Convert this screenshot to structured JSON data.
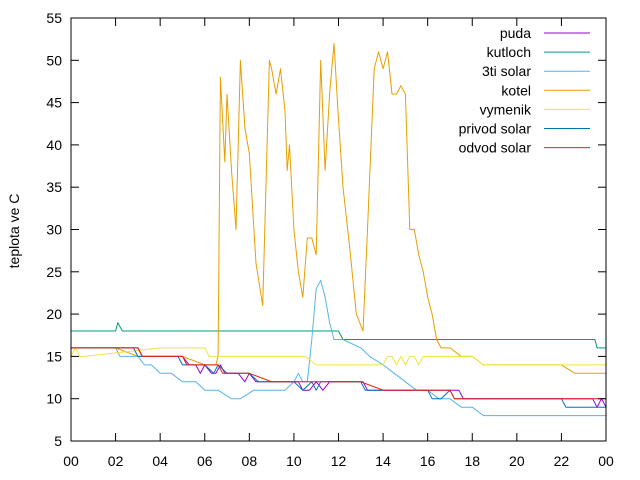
{
  "chart_data": {
    "type": "line",
    "title": "",
    "xlabel": "",
    "ylabel": "teplota ve C",
    "xlim": [
      0,
      24
    ],
    "ylim": [
      5,
      55
    ],
    "x_ticks": [
      "00",
      "02",
      "04",
      "06",
      "08",
      "10",
      "12",
      "14",
      "16",
      "18",
      "20",
      "22",
      "00"
    ],
    "y_ticks": [
      5,
      10,
      15,
      20,
      25,
      30,
      35,
      40,
      45,
      50,
      55
    ],
    "grid": false,
    "legend": "top-right",
    "series": [
      {
        "name": "puda",
        "color": "#9400d3",
        "x": [
          0,
          3,
          3.2,
          3.4,
          5,
          5.3,
          5.6,
          5.8,
          6.0,
          6.3,
          6.5,
          6.7,
          6.9,
          7.1,
          7.5,
          7.8,
          8.0,
          8.3,
          8.7,
          10.2,
          10.4,
          10.7,
          11.0,
          11.3,
          11.6,
          12.0,
          13.1,
          13.3,
          13.6,
          17.4,
          17.6,
          18.0,
          23.4,
          23.6,
          23.8,
          24
        ],
        "y": [
          16,
          16,
          15,
          15,
          15,
          14,
          14,
          13,
          14,
          13,
          13,
          14,
          13,
          13,
          13,
          12,
          13,
          12,
          12,
          12,
          11,
          11,
          12,
          11,
          12,
          12,
          12,
          11,
          11,
          11,
          10,
          10,
          10,
          9,
          10,
          9
        ]
      },
      {
        "name": "kutloch",
        "color": "#009e73",
        "x": [
          0,
          2.0,
          2.1,
          2.3,
          12.0,
          12.2,
          23.5,
          23.6,
          24
        ],
        "y": [
          18,
          18,
          19,
          18,
          18,
          17,
          17,
          16,
          16
        ]
      },
      {
        "name": "3ti solar",
        "color": "#56b4e9",
        "x": [
          0,
          2.0,
          2.2,
          3.0,
          3.3,
          3.6,
          4.0,
          4.5,
          5.0,
          5.6,
          6.0,
          6.3,
          6.6,
          7.2,
          7.6,
          8.2,
          9.0,
          9.6,
          10.0,
          10.2,
          10.4,
          10.6,
          10.8,
          11.0,
          11.2,
          11.4,
          11.6,
          11.8,
          12.2,
          13.0,
          13.4,
          14.0,
          14.5,
          15.0,
          15.5,
          16.0,
          16.5,
          17.0,
          17.5,
          18.0,
          18.5,
          20.0,
          22.0,
          24
        ],
        "y": [
          16,
          16,
          15,
          15,
          14,
          14,
          13,
          13,
          12,
          12,
          11,
          11,
          11,
          10,
          10,
          11,
          11,
          11,
          12,
          13,
          12,
          12,
          17,
          23,
          24,
          22,
          19,
          17,
          17,
          16,
          15,
          14,
          13,
          12,
          11,
          11,
          10,
          10,
          9,
          9,
          8,
          8,
          8,
          8
        ]
      },
      {
        "name": "kotel",
        "color": "#e69f00",
        "x": [
          0,
          1,
          2,
          3,
          4,
          5,
          6,
          6.5,
          6.6,
          6.7,
          6.9,
          7.0,
          7.2,
          7.4,
          7.6,
          7.8,
          8.0,
          8.3,
          8.6,
          8.9,
          9.0,
          9.2,
          9.4,
          9.6,
          9.7,
          9.8,
          10.0,
          10.2,
          10.4,
          10.6,
          10.8,
          11.0,
          11.2,
          11.4,
          11.6,
          11.8,
          12.0,
          12.2,
          12.5,
          12.8,
          13.1,
          13.3,
          13.6,
          13.8,
          14.0,
          14.2,
          14.4,
          14.6,
          14.8,
          15.0,
          15.2,
          15.4,
          15.6,
          15.8,
          16.0,
          16.2,
          16.4,
          16.6,
          17.0,
          17.5,
          18.0,
          18.5,
          19,
          20,
          21,
          22,
          22.6,
          23,
          24
        ],
        "y": [
          16,
          16,
          16,
          15,
          15,
          15,
          14,
          14,
          15,
          48,
          38,
          46,
          37,
          30,
          50,
          42,
          39,
          26,
          21,
          50,
          49,
          46,
          49,
          44,
          37,
          40,
          30,
          25,
          22,
          29,
          29,
          27,
          50,
          37,
          46,
          52,
          43,
          35,
          28,
          20,
          18,
          30,
          49,
          51,
          49,
          51,
          46,
          46,
          47,
          46,
          30,
          30,
          27,
          25,
          22,
          20,
          17,
          16,
          16,
          15,
          15,
          14,
          14,
          14,
          14,
          14,
          13,
          13,
          13
        ]
      },
      {
        "name": "vymenik",
        "color": "#f0e442",
        "x": [
          0,
          0.2,
          0.4,
          0.6,
          4.0,
          6.0,
          6.2,
          10.5,
          11.0,
          12.0,
          14.0,
          14.2,
          14.4,
          14.6,
          14.8,
          15.0,
          15.2,
          15.4,
          15.6,
          15.8,
          16.0,
          17.0,
          18.0,
          18.5,
          19.0,
          20.0,
          22.0,
          24
        ],
        "y": [
          15,
          16,
          15,
          15,
          16,
          16,
          15,
          15,
          14,
          14,
          14,
          15,
          15,
          14,
          15,
          14,
          15,
          15,
          14,
          15,
          15,
          15,
          15,
          14,
          14,
          14,
          14,
          14
        ]
      },
      {
        "name": "privod solar",
        "color": "#0072b2",
        "x": [
          0,
          2.8,
          3.0,
          4.0,
          4.8,
          5.0,
          5.6,
          6.0,
          6.4,
          6.6,
          7.0,
          8.0,
          8.4,
          9.0,
          10.0,
          10.4,
          10.8,
          11.0,
          11.2,
          12.0,
          13.0,
          13.2,
          13.6,
          14.0,
          16.0,
          16.2,
          16.6,
          17.0,
          17.2,
          17.6,
          18.0,
          20.0,
          22.0,
          22.2,
          23.0,
          24
        ],
        "y": [
          16,
          16,
          15,
          15,
          15,
          14,
          14,
          14,
          13,
          14,
          13,
          13,
          12,
          12,
          12,
          11,
          12,
          11,
          12,
          12,
          12,
          11,
          11,
          11,
          11,
          10,
          10,
          11,
          10,
          10,
          10,
          10,
          10,
          9,
          9,
          9
        ]
      },
      {
        "name": "odvod solar",
        "color": "#e51e10",
        "x": [
          0,
          3.0,
          3.2,
          4.0,
          5.0,
          5.2,
          6.0,
          6.6,
          6.8,
          8.0,
          9.0,
          10.2,
          10.4,
          11.6,
          12.0,
          13.0,
          14.0,
          16.0,
          17.0,
          17.2,
          18.0,
          20.0,
          22.0,
          24
        ],
        "y": [
          16,
          16,
          15,
          15,
          15,
          14,
          14,
          14,
          13,
          13,
          12,
          12,
          12,
          12,
          12,
          12,
          11,
          11,
          11,
          10,
          10,
          10,
          10,
          10
        ]
      }
    ]
  }
}
